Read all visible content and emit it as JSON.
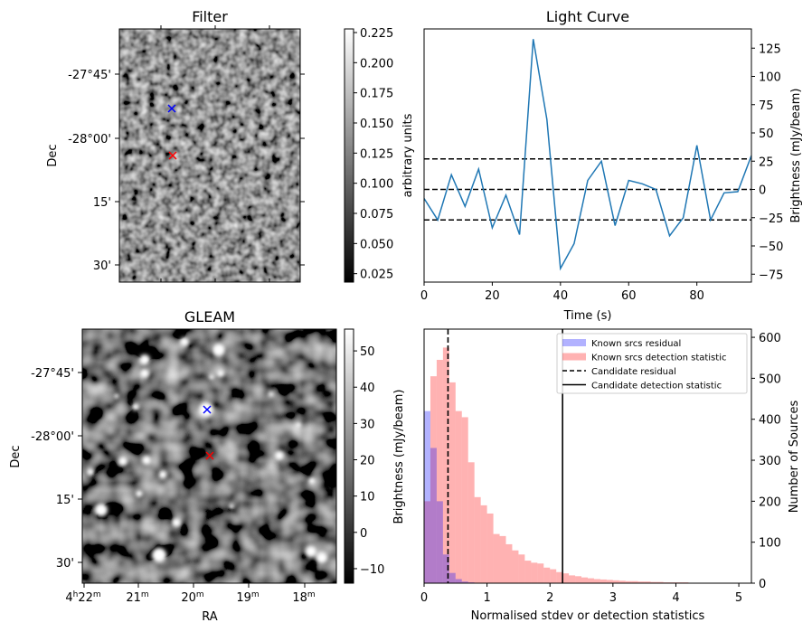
{
  "chart_data": [
    {
      "id": "filter",
      "type": "heatmap",
      "title": "Filter",
      "xlabel": "",
      "ylabel": "Dec",
      "ytick_labels": [
        "-27°45'",
        "-28°00'",
        "15'",
        "30'"
      ],
      "colorbar": {
        "label": "arbitrary units",
        "range": [
          0.018,
          0.228
        ],
        "ticks": [
          0.025,
          0.05,
          0.075,
          0.1,
          0.125,
          0.15,
          0.175,
          0.2,
          0.225
        ],
        "tick_labels": [
          "0.025",
          "0.050",
          "0.075",
          "0.100",
          "0.125",
          "0.150",
          "0.175",
          "0.200",
          "0.225"
        ]
      },
      "markers": [
        {
          "name": "known source",
          "symbol": "x",
          "color": "#0000ff"
        },
        {
          "name": "candidate",
          "symbol": "x",
          "color": "#ff0000"
        }
      ]
    },
    {
      "id": "lightcurve",
      "type": "line",
      "title": "Light Curve",
      "xlabel": "Time (s)",
      "ylabel": "Brightness (mJy/beam)",
      "xlim": [
        0,
        96
      ],
      "ylim": [
        -82,
        142
      ],
      "xticks": [
        0,
        20,
        40,
        60,
        80
      ],
      "yticks": [
        -75,
        -50,
        -25,
        0,
        25,
        50,
        75,
        100,
        125
      ],
      "series": [
        {
          "color": "#1f77b4",
          "x": [
            0,
            4,
            8,
            12,
            16,
            20,
            24,
            28,
            32,
            36,
            40,
            44,
            48,
            52,
            56,
            60,
            64,
            68,
            72,
            76,
            80,
            84,
            88,
            92,
            96
          ],
          "y": [
            -8,
            -27,
            13,
            -15,
            18,
            -34,
            -5,
            -40,
            133,
            62,
            -70,
            -48,
            8,
            25,
            -32,
            8,
            5,
            0,
            -41,
            -25,
            39,
            -27,
            -3,
            -2,
            30
          ]
        }
      ],
      "hlines": [
        {
          "y": 27,
          "style": "dashed"
        },
        {
          "y": 0,
          "style": "dashed"
        },
        {
          "y": -27,
          "style": "dashed"
        }
      ]
    },
    {
      "id": "gleam",
      "type": "heatmap",
      "title": "GLEAM",
      "xlabel": "RA",
      "ylabel": "Dec",
      "xtick_labels": [
        "4h22m",
        "21m",
        "20m",
        "19m",
        "18m"
      ],
      "ytick_labels": [
        "-27°45'",
        "-28°00'",
        "15'",
        "30'"
      ],
      "colorbar": {
        "label": "Brightness (mJy/beam)",
        "range": [
          -14,
          56
        ],
        "ticks": [
          -10,
          0,
          10,
          20,
          30,
          40,
          50
        ],
        "tick_labels": [
          "−10",
          "0",
          "10",
          "20",
          "30",
          "40",
          "50"
        ]
      },
      "markers": [
        {
          "name": "known source",
          "symbol": "x",
          "color": "#0000ff"
        },
        {
          "name": "candidate",
          "symbol": "x",
          "color": "#ff0000"
        }
      ]
    },
    {
      "id": "hist",
      "type": "bar",
      "title": "",
      "xlabel": "Normalised stdev or detection statistics",
      "ylabel": "Brightness (mJy/beam)",
      "ylabel_right": "Number of Sources",
      "xlim": [
        0,
        5.2
      ],
      "ylim": [
        0,
        620
      ],
      "xticks": [
        0,
        1,
        2,
        3,
        4,
        5
      ],
      "yticks": [
        0,
        100,
        200,
        300,
        400,
        500,
        600
      ],
      "legend_position": "top-right",
      "series": [
        {
          "name": "Known srcs residual",
          "color": "#0000ff",
          "opacity": 0.3,
          "bin_start": 0,
          "bin_width": 0.1,
          "values": [
            420,
            330,
            200,
            70,
            25,
            10,
            4,
            2
          ]
        },
        {
          "name": "Known srcs detection statistic",
          "color": "#ff0000",
          "opacity": 0.3,
          "bin_start": 0,
          "bin_width": 0.1,
          "values": [
            200,
            505,
            545,
            575,
            490,
            420,
            405,
            295,
            210,
            190,
            170,
            120,
            115,
            95,
            80,
            70,
            55,
            50,
            48,
            38,
            34,
            27,
            24,
            19,
            17,
            14,
            12,
            10,
            9,
            8,
            7,
            6,
            5,
            5,
            4,
            4,
            3,
            3,
            2,
            2,
            2,
            2,
            1,
            1,
            1,
            1,
            1,
            1,
            1,
            1
          ]
        }
      ],
      "vlines": [
        {
          "name": "Candidate residual",
          "x": 0.38,
          "style": "dashed"
        },
        {
          "name": "Candidate detection statistic",
          "x": 2.2,
          "style": "solid"
        }
      ]
    }
  ]
}
